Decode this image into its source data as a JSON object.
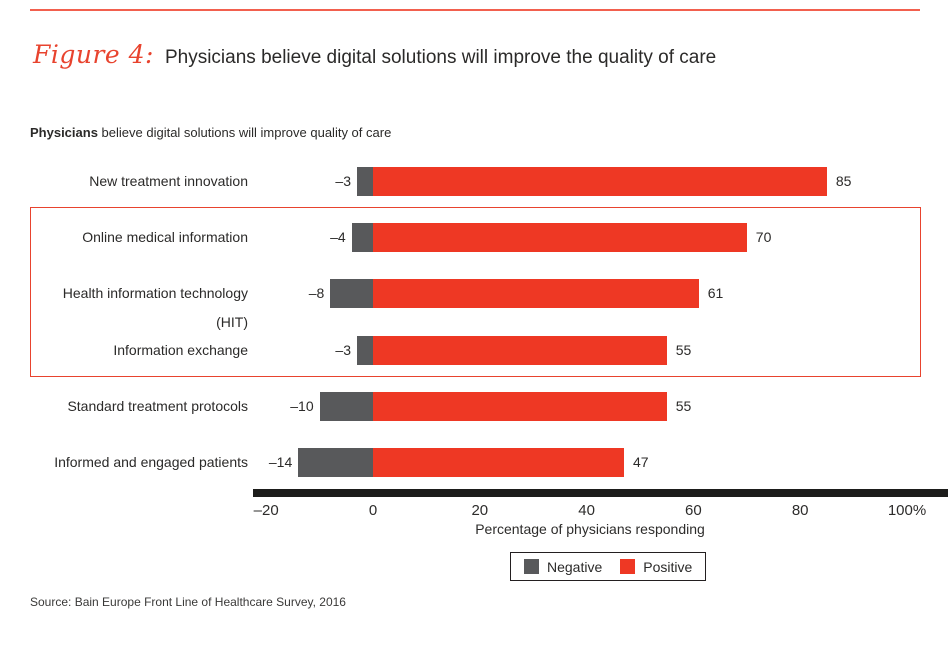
{
  "figure": {
    "label": "Figure 4:",
    "title": "Physicians believe digital solutions will improve the quality of care",
    "subtitle_bold": "Physicians",
    "subtitle_rest": " believe digital solutions will improve quality of care",
    "source": "Source: Bain Europe Front Line of Healthcare Survey, 2016"
  },
  "colors": {
    "positive": "#ee3824",
    "negative": "#58595b",
    "accent": "#e8432e",
    "top_rule": "#f2604e",
    "axis": "#1d1d1b",
    "text": "#2b2a29"
  },
  "chart_data": {
    "type": "bar",
    "orientation": "horizontal",
    "title": "Physicians believe digital solutions will improve quality of care",
    "categories": [
      "New treatment innovation",
      "Online medical information",
      "Health information technology (HIT)",
      "Information exchange",
      "Standard treatment protocols",
      "Informed and engaged patients"
    ],
    "series": [
      {
        "name": "Negative",
        "color": "#58595b",
        "values": [
          -3,
          -4,
          -8,
          -3,
          -10,
          -14
        ],
        "labels": [
          "–3",
          "–4",
          "–8",
          "–3",
          "–10",
          "–14"
        ]
      },
      {
        "name": "Positive",
        "color": "#ee3824",
        "values": [
          85,
          70,
          61,
          55,
          55,
          47
        ],
        "labels": [
          "85",
          "70",
          "61",
          "55",
          "55",
          "47"
        ]
      }
    ],
    "xlabel": "Percentage of physicians responding",
    "xlim": [
      -20,
      100
    ],
    "xticks": [
      -20,
      0,
      20,
      40,
      60,
      80,
      100
    ],
    "xtick_labels": [
      "–20",
      "0",
      "20",
      "40",
      "60",
      "80",
      "100%"
    ],
    "legend": {
      "position": "bottom",
      "entries": [
        "Negative",
        "Positive"
      ]
    },
    "grid": false,
    "highlight_box": {
      "from_row": 1,
      "to_row": 3
    }
  }
}
